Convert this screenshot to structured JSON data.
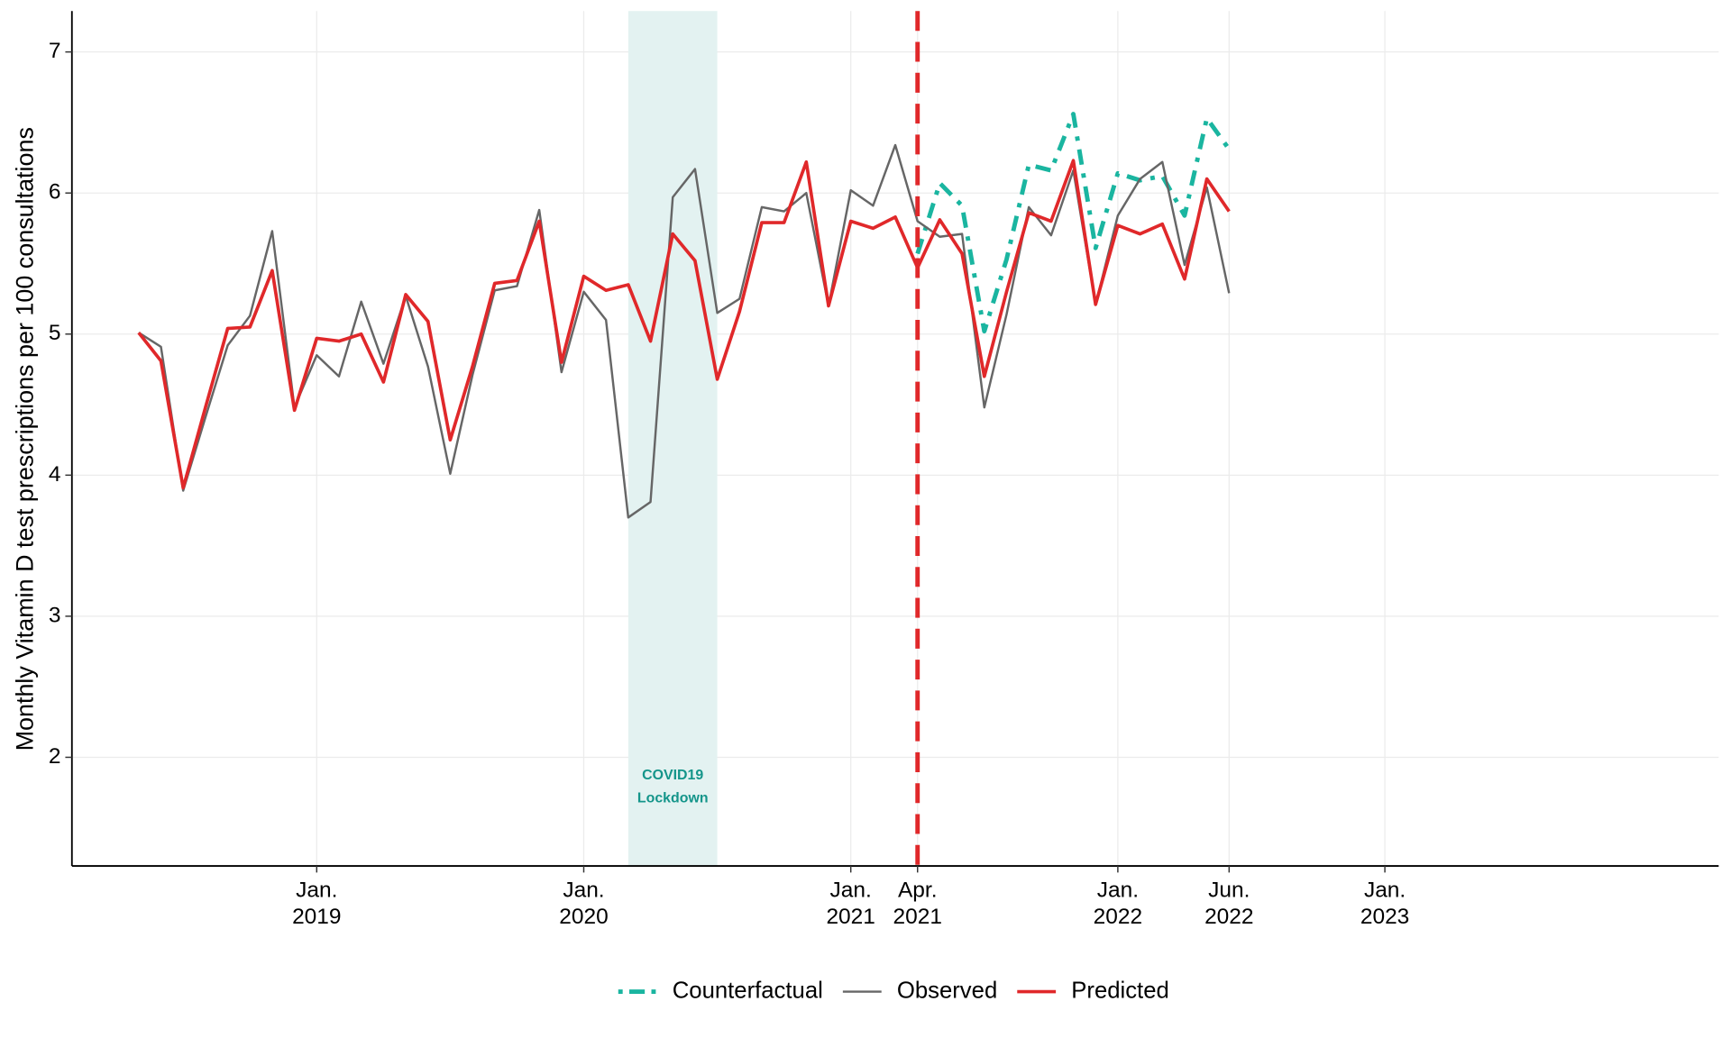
{
  "chart_data": {
    "type": "line",
    "y_label": "Monthly Vitamin D test prescriptions per 100 consultations",
    "x": [
      "2018-05",
      "2018-06",
      "2018-07",
      "2018-08",
      "2018-09",
      "2018-10",
      "2018-11",
      "2018-12",
      "2019-01",
      "2019-02",
      "2019-03",
      "2019-04",
      "2019-05",
      "2019-06",
      "2019-07",
      "2019-08",
      "2019-09",
      "2019-10",
      "2019-11",
      "2019-12",
      "2020-01",
      "2020-02",
      "2020-03",
      "2020-04",
      "2020-05",
      "2020-06",
      "2020-07",
      "2020-08",
      "2020-09",
      "2020-10",
      "2020-11",
      "2020-12",
      "2021-01",
      "2021-02",
      "2021-03",
      "2021-04",
      "2021-05",
      "2021-06",
      "2021-07",
      "2021-08",
      "2021-09",
      "2021-10",
      "2021-11",
      "2021-12",
      "2022-01",
      "2022-02",
      "2022-03",
      "2022-04",
      "2022-05",
      "2022-06"
    ],
    "series": [
      {
        "name": "Counterfactual",
        "color": "#1ab5a0",
        "line_style": "dashdot",
        "values": [
          null,
          null,
          null,
          null,
          null,
          null,
          null,
          null,
          null,
          null,
          null,
          null,
          null,
          null,
          null,
          null,
          null,
          null,
          null,
          null,
          null,
          null,
          null,
          null,
          null,
          null,
          null,
          null,
          null,
          null,
          null,
          null,
          null,
          null,
          null,
          5.57,
          6.07,
          5.91,
          5.02,
          5.53,
          6.2,
          6.16,
          6.56,
          5.61,
          6.14,
          6.09,
          6.12,
          5.84,
          6.53,
          6.31
        ]
      },
      {
        "name": "Observed",
        "color": "#666666",
        "line_style": "solid",
        "values": [
          5.01,
          4.91,
          3.89,
          4.41,
          4.92,
          5.13,
          5.73,
          4.48,
          4.85,
          4.7,
          5.23,
          4.79,
          5.27,
          4.77,
          4.01,
          4.71,
          5.31,
          5.34,
          5.88,
          4.73,
          5.3,
          5.1,
          3.7,
          3.81,
          5.97,
          6.17,
          5.15,
          5.25,
          5.9,
          5.87,
          6.0,
          5.2,
          6.02,
          5.91,
          6.34,
          5.8,
          5.69,
          5.71,
          4.48,
          5.14,
          5.9,
          5.7,
          6.16,
          5.21,
          5.84,
          6.1,
          6.22,
          5.49,
          6.04,
          5.29
        ]
      },
      {
        "name": "Predicted",
        "color": "#e0282a",
        "line_style": "solid",
        "values": [
          5.01,
          4.81,
          3.91,
          4.48,
          5.04,
          5.05,
          5.45,
          4.46,
          4.97,
          4.95,
          5.0,
          4.66,
          5.28,
          5.09,
          4.25,
          4.77,
          5.36,
          5.38,
          5.8,
          4.8,
          5.41,
          5.31,
          5.35,
          4.95,
          5.71,
          5.52,
          4.68,
          5.16,
          5.79,
          5.79,
          6.22,
          5.2,
          5.8,
          5.75,
          5.83,
          5.47,
          5.81,
          5.57,
          4.7,
          5.3,
          5.86,
          5.8,
          6.23,
          5.21,
          5.77,
          5.71,
          5.78,
          5.39,
          6.1,
          5.87
        ]
      }
    ],
    "xlim": [
      "2018-02",
      "2024-04"
    ],
    "xticks": [
      {
        "value": "2019-01",
        "label": [
          "Jan.",
          "2019"
        ]
      },
      {
        "value": "2020-01",
        "label": [
          "Jan.",
          "2020"
        ]
      },
      {
        "value": "2021-01",
        "label": [
          "Jan.",
          "2021"
        ]
      },
      {
        "value": "2021-04",
        "label": [
          "Apr.",
          "2021"
        ]
      },
      {
        "value": "2022-01",
        "label": [
          "Jan.",
          "2022"
        ]
      },
      {
        "value": "2022-06",
        "label": [
          "Jun.",
          "2022"
        ]
      },
      {
        "value": "2023-01",
        "label": [
          "Jan.",
          "2023"
        ]
      }
    ],
    "ylim": [
      1.23,
      7.29
    ],
    "yticks": [
      2,
      3,
      4,
      5,
      6,
      7
    ],
    "grid": true,
    "shaded_region": {
      "x": [
        "2020-03",
        "2020-07"
      ],
      "color": "#e3f2f1",
      "label": [
        "COVID19",
        "Lockdown"
      ],
      "label_color": "#14958a"
    },
    "vline": {
      "x": "2021-04",
      "color": "#e0282a"
    },
    "legend_position": "bottom"
  }
}
